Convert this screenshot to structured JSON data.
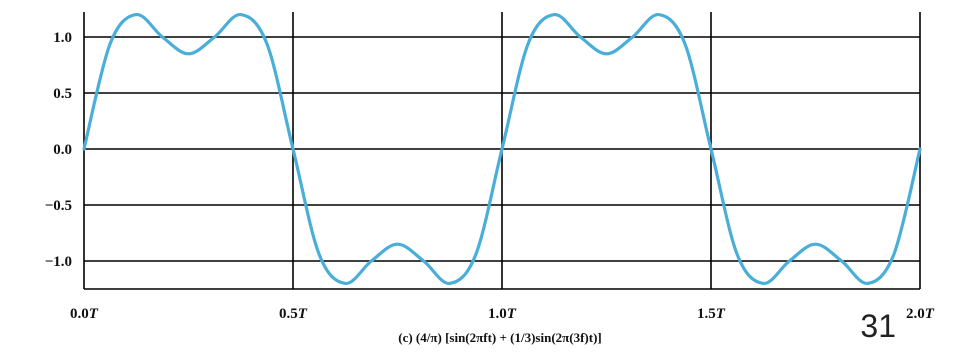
{
  "chart_data": {
    "type": "line",
    "title": "",
    "caption": "(c) (4/π) [sin(2πft) + (1/3)sin(2π(3f)t)]",
    "xlabel": "",
    "ylabel": "",
    "x_tick_labels": [
      {
        "num": "0.0",
        "unit": "T"
      },
      {
        "num": "0.5",
        "unit": "T"
      },
      {
        "num": "1.0",
        "unit": "T"
      },
      {
        "num": "1.5",
        "unit": "T"
      },
      {
        "num": "2.0",
        "unit": "T"
      }
    ],
    "y_tick_labels": [
      "1.0",
      "0.5",
      "0.0",
      "-0.5",
      "-1.0"
    ],
    "xlim": [
      0,
      2
    ],
    "ylim": [
      -1.2,
      1.2
    ],
    "grid": true,
    "line_color": "#4aaed8",
    "series": [
      {
        "x": [
          0,
          0.0625,
          0.125,
          0.1875,
          0.25,
          0.3125,
          0.375,
          0.4375,
          0.5,
          0.5625,
          0.625,
          0.6875,
          0.75,
          0.8125,
          0.875,
          0.9375,
          1.0,
          1.0625,
          1.125,
          1.1875,
          1.25,
          1.3125,
          1.375,
          1.4375,
          1.5,
          1.5625,
          1.625,
          1.6875,
          1.75,
          1.8125,
          1.875,
          1.9375,
          2.0
        ],
        "y": [
          0,
          0.94,
          1.2,
          1.0,
          0.85,
          1.0,
          1.2,
          0.94,
          0,
          -0.94,
          -1.2,
          -1.0,
          -0.85,
          -1.0,
          -1.2,
          -0.94,
          0,
          0.94,
          1.2,
          1.0,
          0.85,
          1.0,
          1.2,
          0.94,
          0,
          -0.94,
          -1.2,
          -1.0,
          -0.85,
          -1.0,
          -1.2,
          -0.94,
          0
        ]
      }
    ]
  },
  "page_number": "31"
}
